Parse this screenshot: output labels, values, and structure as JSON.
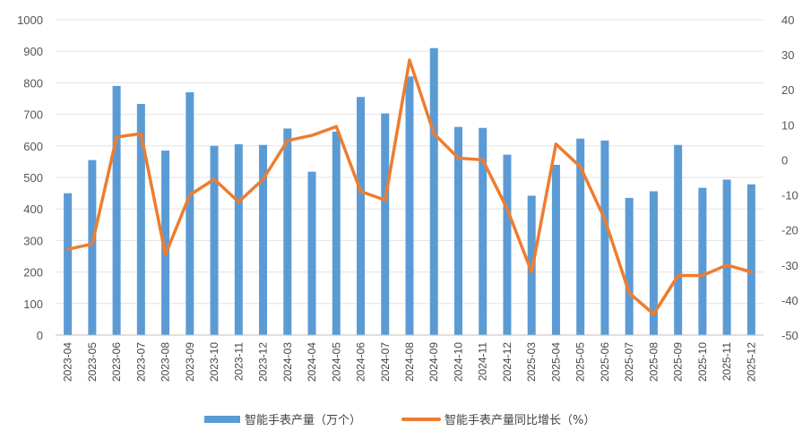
{
  "chart_data": {
    "type": "bar+line",
    "title": "",
    "categories": [
      "2023-04",
      "2023-05",
      "2023-06",
      "2023-07",
      "2023-08",
      "2023-09",
      "2023-10",
      "2023-11",
      "2023-12",
      "2024-03",
      "2024-04",
      "2024-05",
      "2024-06",
      "2024-07",
      "2024-08",
      "2024-09",
      "2024-10",
      "2024-11",
      "2024-12",
      "2025-03",
      "2025-04",
      "2025-05",
      "2025-06",
      "2025-07",
      "2025-08",
      "2025-09",
      "2025-10",
      "2025-11",
      "2025-12"
    ],
    "series": [
      {
        "name": "智能手表产量（万个）",
        "kind": "bar",
        "axis": "left",
        "color": "#5B9BD5",
        "values": [
          450,
          555,
          790,
          733,
          585,
          770,
          600,
          605,
          603,
          655,
          518,
          645,
          755,
          703,
          820,
          910,
          660,
          657,
          572,
          442,
          540,
          623,
          617,
          435,
          456,
          603,
          467,
          493,
          478
        ]
      },
      {
        "name": "智能手表产量同比增长（%）",
        "kind": "line",
        "axis": "right",
        "color": "#ED7D31",
        "values": [
          -25.5,
          -24,
          6.5,
          7.5,
          -27,
          -10,
          -5.5,
          -12,
          -5.5,
          5.5,
          7,
          9.5,
          -9,
          -11.5,
          28.5,
          7.5,
          0.5,
          0,
          -14,
          -32,
          4.5,
          -2,
          -17,
          -38,
          -44,
          -33,
          -33,
          -30,
          -32
        ]
      }
    ],
    "y_left": {
      "min": 0,
      "max": 1000,
      "step": 100,
      "ticks": [
        "0",
        "100",
        "200",
        "300",
        "400",
        "500",
        "600",
        "700",
        "800",
        "900",
        "1000"
      ]
    },
    "y_right": {
      "min": -50,
      "max": 40,
      "step": 10,
      "ticks": [
        "-50",
        "-40",
        "-30",
        "-20",
        "-10",
        "0",
        "10",
        "20",
        "30",
        "40"
      ]
    },
    "grid": true,
    "legend_position": "bottom-center",
    "legend": [
      "智能手表产量（万个）",
      "智能手表产量同比增长（%）"
    ]
  }
}
